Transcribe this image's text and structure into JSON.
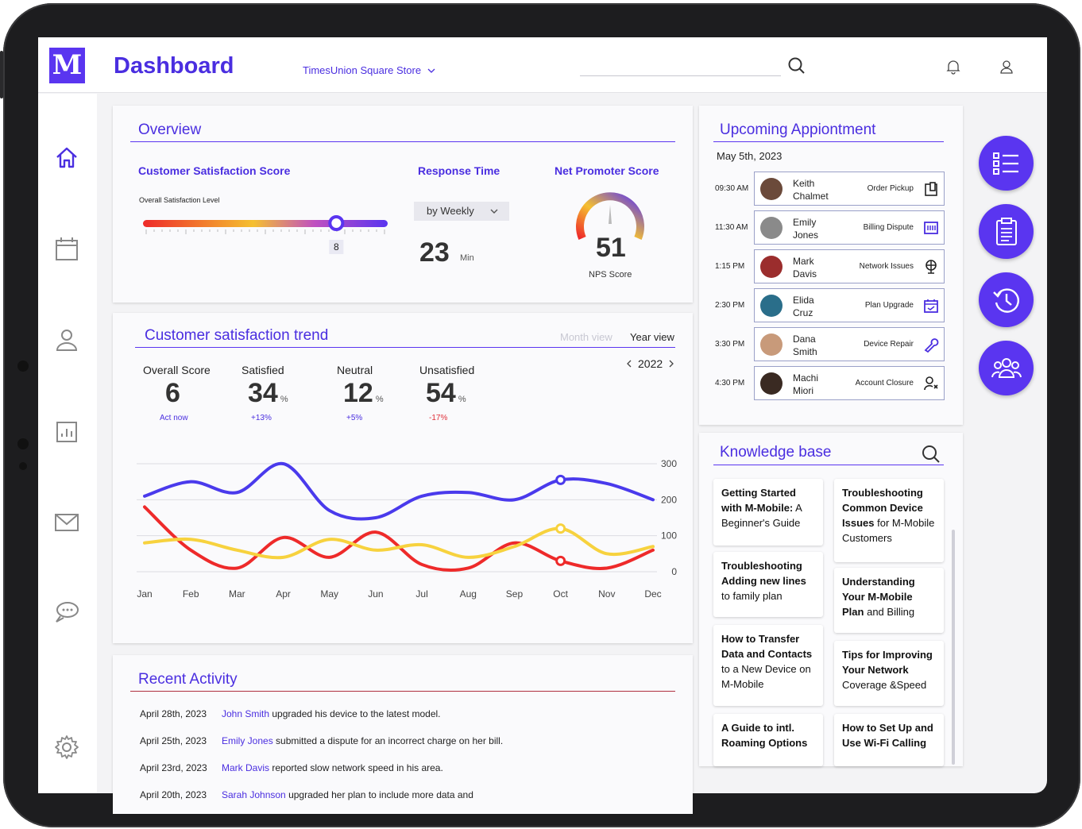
{
  "header": {
    "logo_letter": "M",
    "title": "Dashboard",
    "store": "TimesUnion Square Store",
    "icons": [
      "search-icon",
      "bell-icon",
      "user-icon"
    ]
  },
  "sidebar": {
    "icons": [
      "home-icon",
      "calendar-icon",
      "person-icon",
      "report-icon",
      "mail-icon",
      "chat-icon",
      "gear-icon"
    ]
  },
  "overview": {
    "title": "Overview",
    "csat": {
      "label": "Customer Satisfaction Score",
      "sublabel": "Overall Satisfaction Level",
      "value": "8",
      "level_fraction": 0.79
    },
    "response": {
      "label": "Response Time",
      "select": "by Weekly",
      "value": "23",
      "unit": "Min"
    },
    "nps": {
      "label": "Net Promoter Score",
      "value": "51",
      "caption": "NPS Score"
    }
  },
  "trend": {
    "title": "Customer satisfaction trend",
    "views": [
      "Month view",
      "Year view"
    ],
    "year": "2022",
    "stats": [
      {
        "label": "Overall Score",
        "value": "6",
        "pct": "",
        "delta": "Act now",
        "color": "#4a2ee0"
      },
      {
        "label": "Satisfied",
        "value": "34",
        "pct": "%",
        "delta": "+13%",
        "color": "#4a2ee0"
      },
      {
        "label": "Neutral",
        "value": "12",
        "pct": "%",
        "delta": "+5%",
        "color": "#4a2ee0"
      },
      {
        "label": "Unsatisfied",
        "value": "54",
        "pct": "%",
        "delta": "-17%",
        "color": "#e0303a"
      }
    ]
  },
  "chart_data": {
    "type": "line",
    "x": [
      "Jan",
      "Feb",
      "Mar",
      "Apr",
      "May",
      "Jun",
      "Jul",
      "Aug",
      "Sep",
      "Oct",
      "Nov",
      "Dec"
    ],
    "yticks": [
      300,
      200,
      100,
      0
    ],
    "ylim": [
      0,
      300
    ],
    "grid": true,
    "series": [
      {
        "color": "#4a3aec",
        "values": [
          210,
          250,
          220,
          300,
          170,
          150,
          210,
          220,
          200,
          255,
          245,
          200
        ],
        "marker_index": 9
      },
      {
        "color": "#f7d23e",
        "values": [
          80,
          90,
          60,
          40,
          90,
          60,
          75,
          40,
          70,
          120,
          50,
          70
        ],
        "marker_index": 9
      },
      {
        "color": "#ee2a2a",
        "values": [
          180,
          60,
          10,
          95,
          40,
          110,
          20,
          10,
          80,
          30,
          10,
          60
        ],
        "marker_index": 9
      }
    ]
  },
  "activity": {
    "title": "Recent Activity",
    "rows": [
      {
        "date": "April 28th, 2023",
        "who": "John Smith",
        "what": " upgraded his device to the latest model."
      },
      {
        "date": "April 25th, 2023",
        "who": "Emily Jones",
        "what": " submitted a dispute for an incorrect charge on her bill."
      },
      {
        "date": "April 23rd, 2023",
        "who": "Mark Davis",
        "what": " reported slow network speed in his area."
      },
      {
        "date": "April 20th, 2023",
        "who": "Sarah Johnson",
        "what": " upgraded her plan to include more data and"
      }
    ]
  },
  "appointments": {
    "title": "Upcoming Appiontment",
    "date": "May 5th, 2023",
    "rows": [
      {
        "time": "09:30 AM",
        "first": "Keith",
        "last": "Chalmet",
        "type": "Order Pickup",
        "icon": "order-pickup-icon",
        "avatar": "#6b4a3a"
      },
      {
        "time": "11:30 AM",
        "first": "Emily",
        "last": "Jones",
        "type": "Billing Dispute",
        "icon": "billing-icon",
        "avatar": "#8a8a8a"
      },
      {
        "time": "1:15 PM",
        "first": "Mark",
        "last": "Davis",
        "type": "Network Issues",
        "icon": "network-icon",
        "avatar": "#9b2d2d"
      },
      {
        "time": "2:30 PM",
        "first": "Elida",
        "last": "Cruz",
        "type": "Plan Upgrade",
        "icon": "plan-icon",
        "avatar": "#2a6e8a"
      },
      {
        "time": "3:30 PM",
        "first": "Dana",
        "last": "Smith",
        "type": "Device Repair",
        "icon": "wrench-icon",
        "avatar": "#c89a7a"
      },
      {
        "time": "4:30 PM",
        "first": "Machi",
        "last": "Miori",
        "type": "Account Closure",
        "icon": "account-close-icon",
        "avatar": "#3a2a22"
      }
    ]
  },
  "knowledge": {
    "title": "Knowledge base",
    "items": [
      {
        "bold": "Getting Started with M-Mobile:",
        "rest": "A Beginner's Guide"
      },
      {
        "bold": "Troubleshooting Common Device Issues",
        "rest": "for M-Mobile Customers"
      },
      {
        "bold": "Troubleshooting Adding new lines",
        "rest": "to family plan"
      },
      {
        "bold": "Understanding Your M-Mobile Plan",
        "rest": "and Billing"
      },
      {
        "bold": "How to Transfer Data and Contacts",
        "rest": "to a New Device on M-Mobile"
      },
      {
        "bold": "Tips for Improving Your Network",
        "rest": "Coverage &Speed"
      },
      {
        "bold": "A Guide to intl. Roaming Options",
        "rest": ""
      },
      {
        "bold": "How to Set Up and Use Wi-Fi Calling",
        "rest": ""
      }
    ]
  },
  "fabs": [
    "checklist-icon",
    "clipboard-icon",
    "history-icon",
    "team-icon"
  ],
  "colors": {
    "accent": "#5a35f0",
    "red": "#ee2a2a",
    "yellow": "#f7d23e"
  }
}
